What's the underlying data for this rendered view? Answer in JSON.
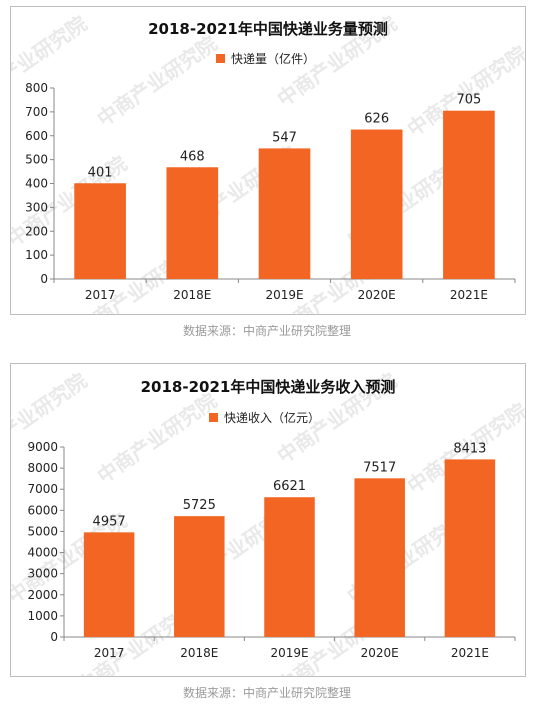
{
  "chart_data": [
    {
      "type": "bar",
      "title": "2018-2021年中国快递业务量预测",
      "series": [
        {
          "name": "快递量（亿件）",
          "values": [
            401,
            468,
            547,
            626,
            705
          ]
        }
      ],
      "categories": [
        "2017",
        "2018E",
        "2019E",
        "2020E",
        "2021E"
      ],
      "ylim": [
        0,
        800
      ],
      "yticks": [
        0,
        100,
        200,
        300,
        400,
        500,
        600,
        700,
        800
      ],
      "grid": false,
      "legend": "top-center",
      "bar_color": "#f26522"
    },
    {
      "type": "bar",
      "title": "2018-2021年中国快递业务收入预测",
      "series": [
        {
          "name": "快递收入（亿元）",
          "values": [
            4957,
            5725,
            6621,
            7517,
            8413
          ]
        }
      ],
      "categories": [
        "2017",
        "2018E",
        "2019E",
        "2020E",
        "2021E"
      ],
      "ylim": [
        0,
        9000
      ],
      "yticks": [
        0,
        1000,
        2000,
        3000,
        4000,
        5000,
        6000,
        7000,
        8000,
        9000
      ],
      "grid": false,
      "legend": "top-center",
      "bar_color": "#f26522"
    }
  ],
  "sources": [
    "数据来源：中商产业研究院整理",
    "数据来源：中商产业研究院整理"
  ],
  "watermark": "中商产业研究院"
}
